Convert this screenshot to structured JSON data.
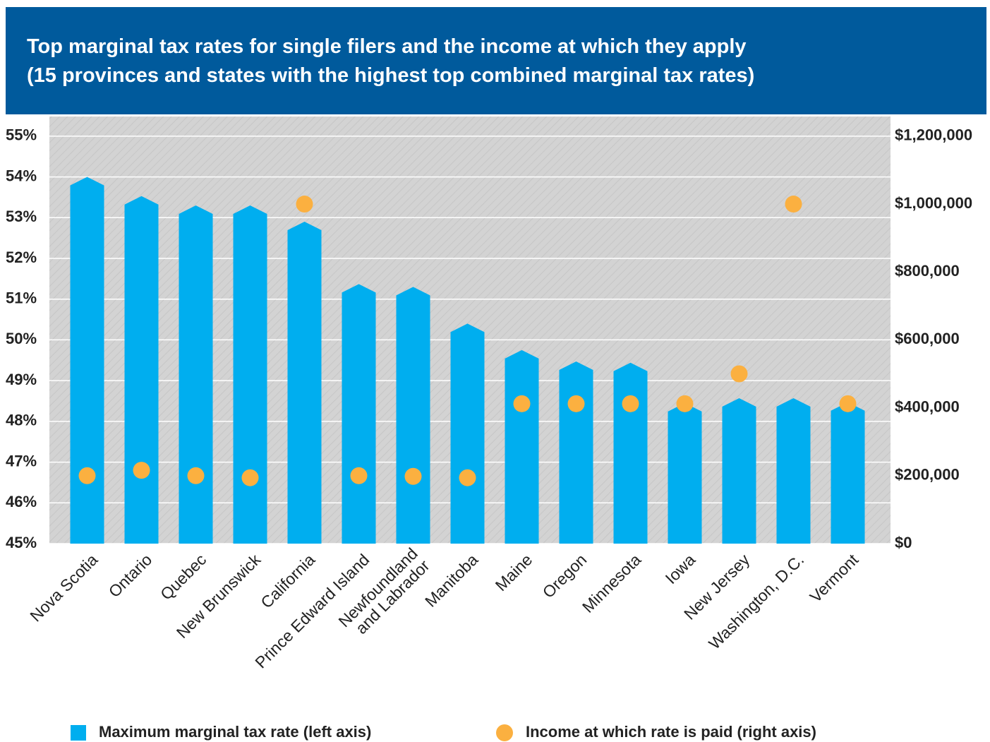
{
  "chart_data": {
    "type": "bar",
    "title": "Top marginal tax rates for single filers and the income at which they apply\n(15 provinces and states with the highest top combined marginal tax rates)",
    "categories": [
      "Nova Scotia",
      "Ontario",
      "Quebec",
      "New Brunswick",
      "California",
      "Prince Edward Island",
      "Newfoundland\nand Labrador",
      "Manitoba",
      "Maine",
      "Oregon",
      "Minnesota",
      "Iowa",
      "New Jersey",
      "Washington, D.C.",
      "Vermont"
    ],
    "series": [
      {
        "name": "Maximum marginal tax rate (left axis)",
        "color": "#00aeef",
        "type": "bar",
        "values": [
          54.0,
          53.53,
          53.3,
          53.3,
          52.9,
          51.37,
          51.3,
          50.4,
          49.75,
          49.47,
          49.44,
          48.45,
          48.57,
          48.57,
          48.47
        ]
      },
      {
        "name": "Income at which rate is paid (right axis)",
        "color": "#fbb040",
        "type": "scatter",
        "axis": "y2",
        "values": [
          200000,
          216000,
          200000,
          194000,
          1000000,
          200000,
          198000,
          194000,
          412000,
          412000,
          412000,
          412000,
          500000,
          1000000,
          412000
        ]
      }
    ],
    "ylim": [
      45,
      55.5
    ],
    "yticks": [
      {
        "value": 45,
        "label": "45%"
      },
      {
        "value": 46,
        "label": "46%"
      },
      {
        "value": 47,
        "label": "47%"
      },
      {
        "value": 48,
        "label": "48%"
      },
      {
        "value": 49,
        "label": "49%"
      },
      {
        "value": 50,
        "label": "50%"
      },
      {
        "value": 51,
        "label": "51%"
      },
      {
        "value": 52,
        "label": "52%"
      },
      {
        "value": 53,
        "label": "53%"
      },
      {
        "value": 54,
        "label": "54%"
      },
      {
        "value": 55,
        "label": "55%"
      }
    ],
    "y2lim": [
      0,
      1260000
    ],
    "y2ticks": [
      {
        "value": 0,
        "label": "$0"
      },
      {
        "value": 200000,
        "label": "$200,000"
      },
      {
        "value": 400000,
        "label": "$400,000"
      },
      {
        "value": 600000,
        "label": "$600,000"
      },
      {
        "value": 800000,
        "label": "$800,000"
      },
      {
        "value": 1000000,
        "label": "$1,000,000"
      },
      {
        "value": 1200000,
        "label": "$1,200,000"
      }
    ],
    "grid": true
  }
}
